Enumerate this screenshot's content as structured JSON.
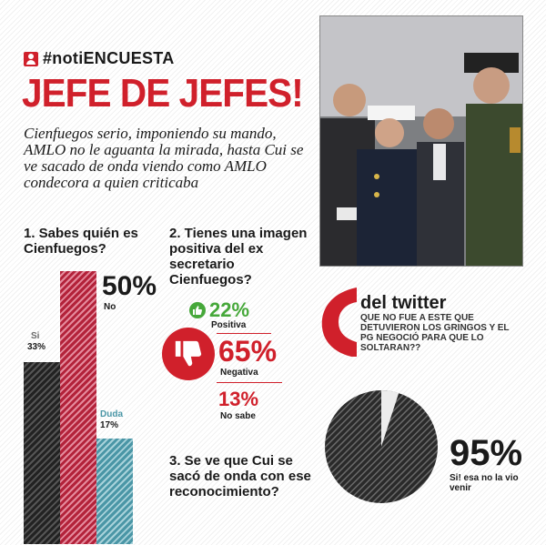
{
  "header": {
    "hashtag": "#notiENCUESTA",
    "headline": "JEFE DE JEFES!",
    "description": "Cienfuegos serio, imponiendo su mando, AMLO no le aguanta la mirada, hasta Cui se ve sacado de onda viendo como AMLO condecora a quien criticaba"
  },
  "q1": {
    "question": "1. Sabes quién es Cienfuegos?",
    "si": {
      "pct": "33%",
      "label": "Si",
      "value": 33
    },
    "no": {
      "pct": "50%",
      "label": "No",
      "value": 50
    },
    "duda": {
      "pct": "17%",
      "label": "Duda",
      "value": 17
    }
  },
  "q2": {
    "question": "2. Tienes una imagen positiva del ex secretario Cienfuegos?",
    "positiva": {
      "pct": "22%",
      "label": "Positiva"
    },
    "negativa": {
      "pct": "65%",
      "label": "Negativa"
    },
    "nosabe": {
      "pct": "13%",
      "label": "No sabe"
    }
  },
  "twitter": {
    "title": "del twitter",
    "text": "QUE NO FUE A ESTE QUE DETUVIERON LOS GRINGOS Y EL PG NEGOCIÓ PARA QUE LO SOLTARAN??"
  },
  "q3": {
    "question": "3. Se ve que Cui se sacó de onda con ese reconocimiento?",
    "pct": "95%",
    "value": 95,
    "label": "Si! esa no la vio venir"
  },
  "colors": {
    "accent": "#d0202b",
    "positive": "#46a83a",
    "duda": "#4a96a6"
  },
  "icons": [
    "user-icon",
    "thumbs-up-icon",
    "thumbs-down-icon",
    "quote-icon"
  ]
}
